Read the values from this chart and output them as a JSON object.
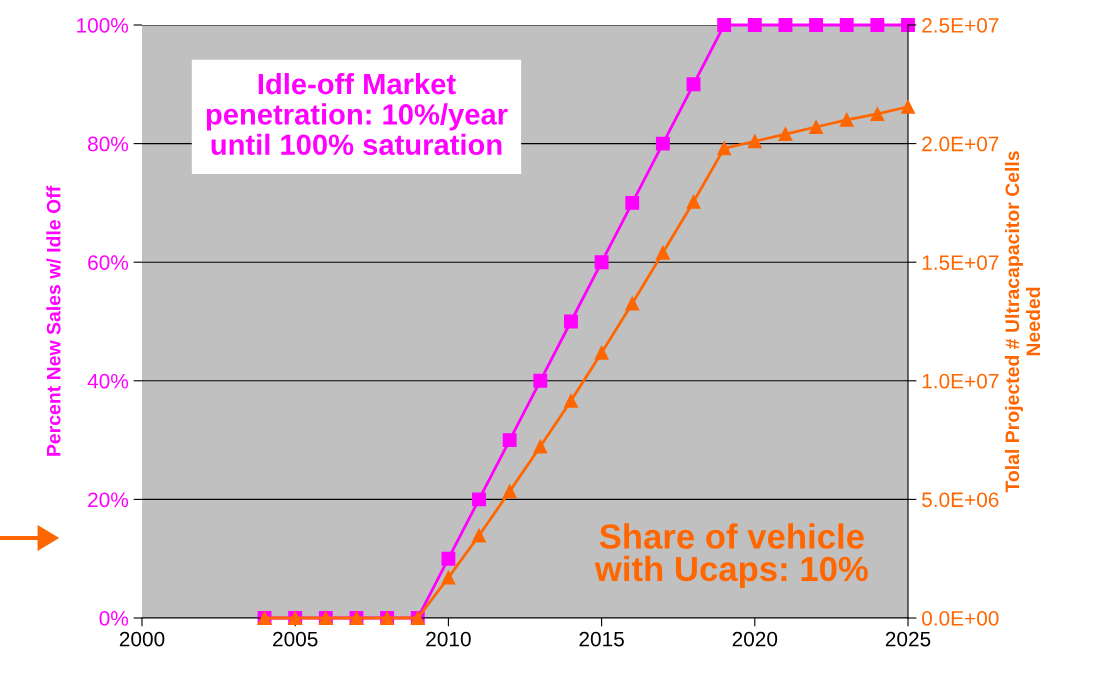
{
  "chart_data": {
    "type": "line",
    "ylabel": "Percent New Sales w/ Idle Off",
    "y2label": "Tolal Projected # Ultracapacitor Cells\nNeeded",
    "x": [
      2004,
      2005,
      2006,
      2007,
      2008,
      2009,
      2010,
      2011,
      2012,
      2013,
      2014,
      2015,
      2016,
      2017,
      2018,
      2019,
      2020,
      2021,
      2022,
      2023,
      2024,
      2025
    ],
    "series": [
      {
        "color": "#ff00ff",
        "marker": "square",
        "values": [
          0,
          0,
          0,
          0,
          0,
          0,
          10,
          20,
          30,
          40,
          50,
          60,
          70,
          80,
          90,
          100,
          100,
          100,
          100,
          100,
          100,
          100
        ]
      },
      {
        "color": "#ff6600",
        "marker": "triangle",
        "axis": "y2",
        "values": [
          0,
          0,
          0,
          0,
          0,
          0,
          1700000,
          3480000,
          5340000,
          7230000,
          9160000,
          11180000,
          13260000,
          15400000,
          17550000,
          19800000,
          20100000,
          20400000,
          20700000,
          21000000,
          21250000,
          21550000
        ]
      }
    ],
    "xlim": [
      2000,
      2025
    ],
    "xticks": [
      2000,
      2005,
      2010,
      2015,
      2020,
      2025
    ],
    "ylim": [
      0,
      100
    ],
    "yticks": [
      {
        "value": 0,
        "label": "0%"
      },
      {
        "value": 20,
        "label": "20%"
      },
      {
        "value": 40,
        "label": "40%"
      },
      {
        "value": 60,
        "label": "60%"
      },
      {
        "value": 80,
        "label": "80%"
      },
      {
        "value": 100,
        "label": "100%"
      }
    ],
    "y2lim": [
      0,
      25000000
    ],
    "y2ticks": [
      {
        "value": 0,
        "label": "0.0E+00"
      },
      {
        "value": 5000000,
        "label": "5.0E+06"
      },
      {
        "value": 10000000,
        "label": "1.0E+07"
      },
      {
        "value": 15000000,
        "label": "1.5E+07"
      },
      {
        "value": 20000000,
        "label": "2.0E+07"
      },
      {
        "value": 25000000,
        "label": "2.5E+07"
      }
    ],
    "grid": "y",
    "legend": false,
    "annotations": [
      "Idle-off Market\npenetration: 10%/year\nuntil 100% saturation",
      "Share of vehicle\nwith Ucaps: 10%"
    ]
  }
}
